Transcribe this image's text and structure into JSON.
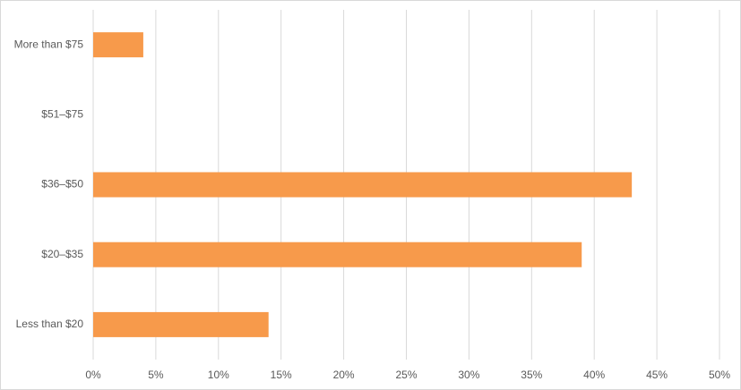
{
  "chart_data": {
    "type": "hbar",
    "categories": [
      "More than $75",
      "$51–$75",
      "$36–$50",
      "$20–$35",
      "Less than $20"
    ],
    "values": [
      4,
      0,
      43,
      39,
      14
    ],
    "color": "#f79a4b",
    "xlim": [
      0,
      50
    ],
    "xticks": [
      {
        "value": 0,
        "label": "0%"
      },
      {
        "value": 5,
        "label": "5%"
      },
      {
        "value": 10,
        "label": "10%"
      },
      {
        "value": 15,
        "label": "15%"
      },
      {
        "value": 20,
        "label": "20%"
      },
      {
        "value": 25,
        "label": "25%"
      },
      {
        "value": 30,
        "label": "30%"
      },
      {
        "value": 35,
        "label": "35%"
      },
      {
        "value": 40,
        "label": "40%"
      },
      {
        "value": 45,
        "label": "45%"
      },
      {
        "value": 50,
        "label": "50%"
      }
    ],
    "grid": true
  }
}
